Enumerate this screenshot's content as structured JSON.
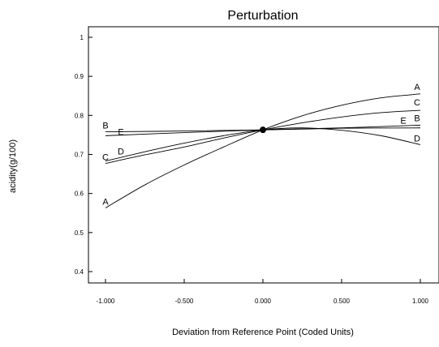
{
  "chart_data": {
    "type": "line",
    "title": "Perturbation",
    "xlabel": "Deviation from Reference Point (Coded Units)",
    "ylabel": "acidity(g/100)",
    "xlim": [
      -1.0,
      1.0
    ],
    "ylim": [
      0.35,
      1.05
    ],
    "xticks": [
      -1.0,
      -0.5,
      0.0,
      0.5,
      1.0
    ],
    "xtick_labels": [
      "-1.000",
      "-0.500",
      "0.000",
      "0.500",
      "1.000"
    ],
    "yticks": [
      0.4,
      0.5,
      0.6,
      0.7,
      0.8,
      0.9,
      1.0
    ],
    "ytick_labels": [
      "0.4",
      "0.5",
      "0.6",
      "0.7",
      "0.8",
      "0.9",
      "1"
    ],
    "reference_point": {
      "x": 0.0,
      "y": 0.763
    },
    "series": [
      {
        "name": "A",
        "x": [
          -1.0,
          -0.75,
          -0.5,
          -0.25,
          0.0,
          0.25,
          0.5,
          0.75,
          1.0
        ],
        "values": [
          0.563,
          0.622,
          0.673,
          0.719,
          0.763,
          0.799,
          0.826,
          0.845,
          0.855
        ]
      },
      {
        "name": "B",
        "x": [
          -1.0,
          -0.5,
          0.0,
          0.5,
          1.0
        ],
        "values": [
          0.758,
          0.76,
          0.763,
          0.768,
          0.775
        ]
      },
      {
        "name": "C",
        "x": [
          -1.0,
          -0.75,
          -0.5,
          -0.25,
          0.0,
          0.25,
          0.5,
          0.75,
          1.0
        ],
        "values": [
          0.677,
          0.699,
          0.719,
          0.742,
          0.763,
          0.781,
          0.796,
          0.807,
          0.813
        ]
      },
      {
        "name": "D",
        "x": [
          -1.0,
          -0.75,
          -0.5,
          -0.25,
          0.0,
          0.25,
          0.5,
          0.75,
          1.0
        ],
        "values": [
          0.683,
          0.707,
          0.729,
          0.748,
          0.763,
          0.768,
          0.762,
          0.748,
          0.725
        ]
      },
      {
        "name": "E",
        "x": [
          -1.0,
          -0.5,
          0.0,
          0.5,
          1.0
        ],
        "values": [
          0.748,
          0.756,
          0.763,
          0.767,
          0.768
        ]
      }
    ]
  }
}
